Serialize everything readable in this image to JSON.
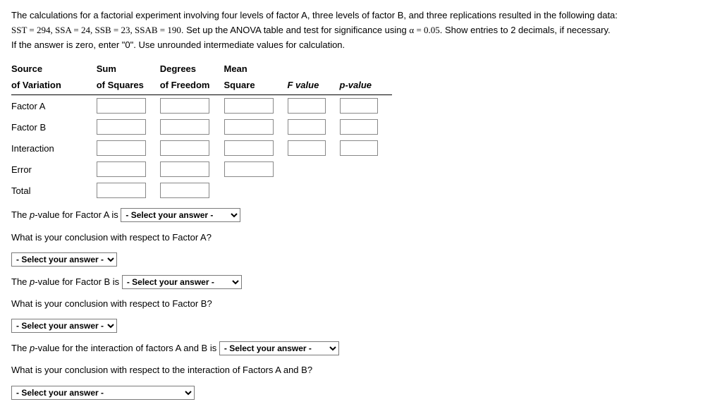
{
  "problem": {
    "line1_pre": "The calculations for a factorial experiment involving four levels of factor A, three levels of factor B, and three replications resulted in the following data:",
    "sst_label": "SST",
    "sst_val": "294",
    "ssa_label": "SSA",
    "ssa_val": "24",
    "ssb_label": "SSB",
    "ssb_val": "23",
    "ssab_label": "SSAB",
    "ssab_val": "190",
    "line2_mid": ". Set up the ANOVA table and test for significance using ",
    "alpha_sym": "α",
    "alpha_val": "0.05",
    "line2_end": ". Show entries to 2 decimals, if necessary.",
    "line3": "If the answer is zero, enter \"0\". Use unrounded intermediate values for calculation."
  },
  "headers": {
    "source1": "Source",
    "source2": "of Variation",
    "sum1": "Sum",
    "sum2": "of Squares",
    "df1": "Degrees",
    "df2": "of Freedom",
    "ms1": "Mean",
    "ms2": "Square",
    "fval": "F value",
    "pval": "p-value"
  },
  "rows": {
    "factorA": "Factor A",
    "factorB": "Factor B",
    "interaction": "Interaction",
    "error": "Error",
    "total": "Total"
  },
  "questions": {
    "pA_pre": "The ",
    "p_letter": "p",
    "pA_post": "-value for Factor A is",
    "pB_post": "-value for Factor B is",
    "pAB_post": "-value for the interaction of factors A and B is",
    "concA": "What is your conclusion with respect to Factor A?",
    "concB": "What is your conclusion with respect to Factor B?",
    "concAB": "What is your conclusion with respect to the interaction of Factors A and B?"
  },
  "select_placeholder": "- Select your answer -"
}
